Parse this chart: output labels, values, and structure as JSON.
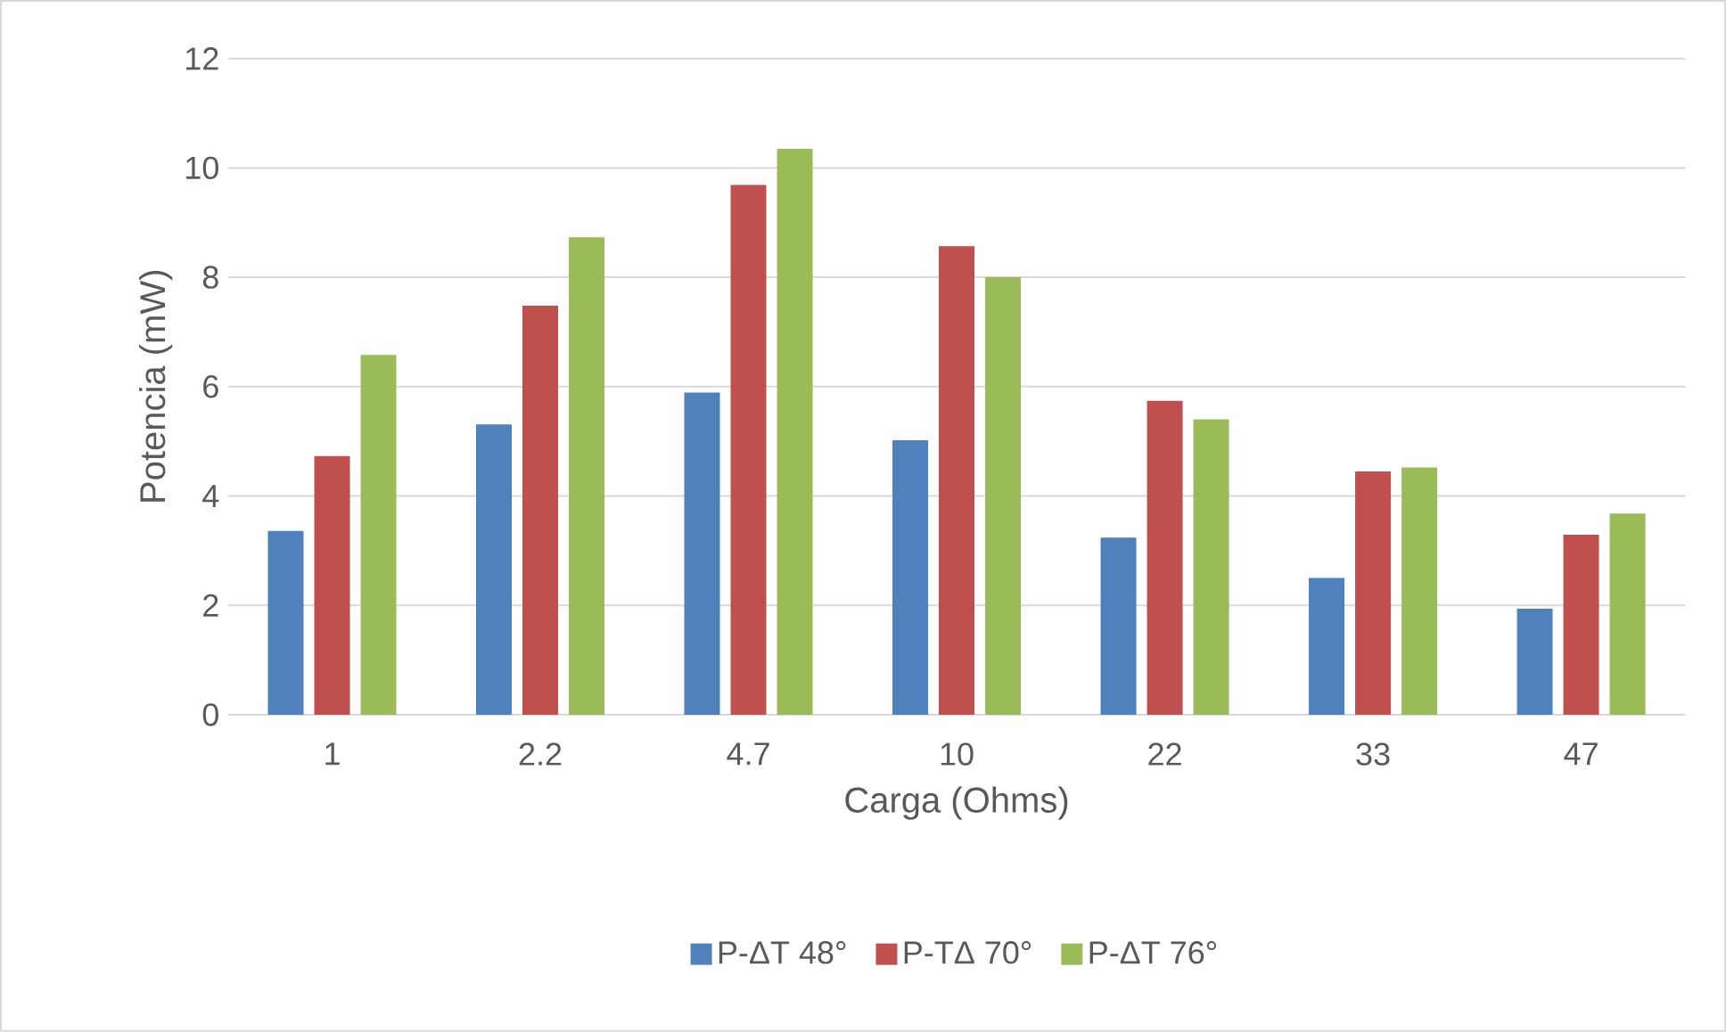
{
  "chart_data": {
    "type": "bar",
    "xlabel": "Carga (Ohms)",
    "ylabel": "Potencia (mW)",
    "categories": [
      "1",
      "2.2",
      "4.7",
      "10",
      "22",
      "33",
      "47"
    ],
    "series": [
      {
        "name": "P-ΔT 48°",
        "color": "#4f81bd",
        "values": [
          3.36,
          5.31,
          5.89,
          5.02,
          3.24,
          2.5,
          1.94
        ]
      },
      {
        "name": "P-TΔ 70°",
        "color": "#c0504d",
        "values": [
          4.73,
          7.48,
          9.69,
          8.57,
          5.74,
          4.45,
          3.29
        ]
      },
      {
        "name": "P-ΔT 76°",
        "color": "#9bbb59",
        "values": [
          6.58,
          8.73,
          10.35,
          8.0,
          5.4,
          4.52,
          3.68
        ]
      }
    ],
    "ylim": [
      0,
      12
    ],
    "yticks": [
      0,
      2,
      4,
      6,
      8,
      10,
      12
    ],
    "grid": "y",
    "legend": "bottom"
  }
}
